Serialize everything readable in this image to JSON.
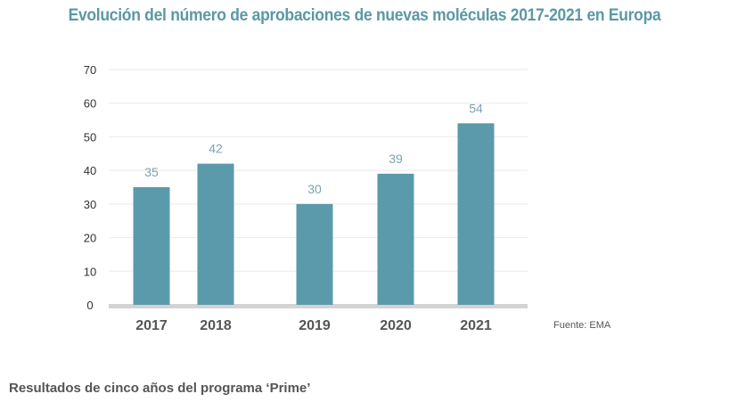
{
  "chart_data": {
    "type": "bar",
    "title": "Evolución del número de aprobaciones de nuevas moléculas 2017-2021 en Europa",
    "categories": [
      "2017",
      "2018",
      "2019",
      "2020",
      "2021"
    ],
    "values": [
      35,
      42,
      30,
      39,
      54
    ],
    "data_labels": [
      "35",
      "42",
      "30",
      "39",
      "54"
    ],
    "xlabel": "",
    "ylabel": "",
    "ylim": [
      0,
      70
    ],
    "yticks": [
      0,
      10,
      20,
      30,
      40,
      50,
      60,
      70
    ],
    "ytick_labels": [
      "0",
      "10",
      "20",
      "30",
      "40",
      "50",
      "60",
      "70"
    ],
    "grid": true,
    "legend": "none",
    "bar_color": "#5b9aab",
    "source": "Fuente: EMA"
  },
  "footer": {
    "subheading": "Resultados de cinco años del programa ‘Prime’"
  }
}
